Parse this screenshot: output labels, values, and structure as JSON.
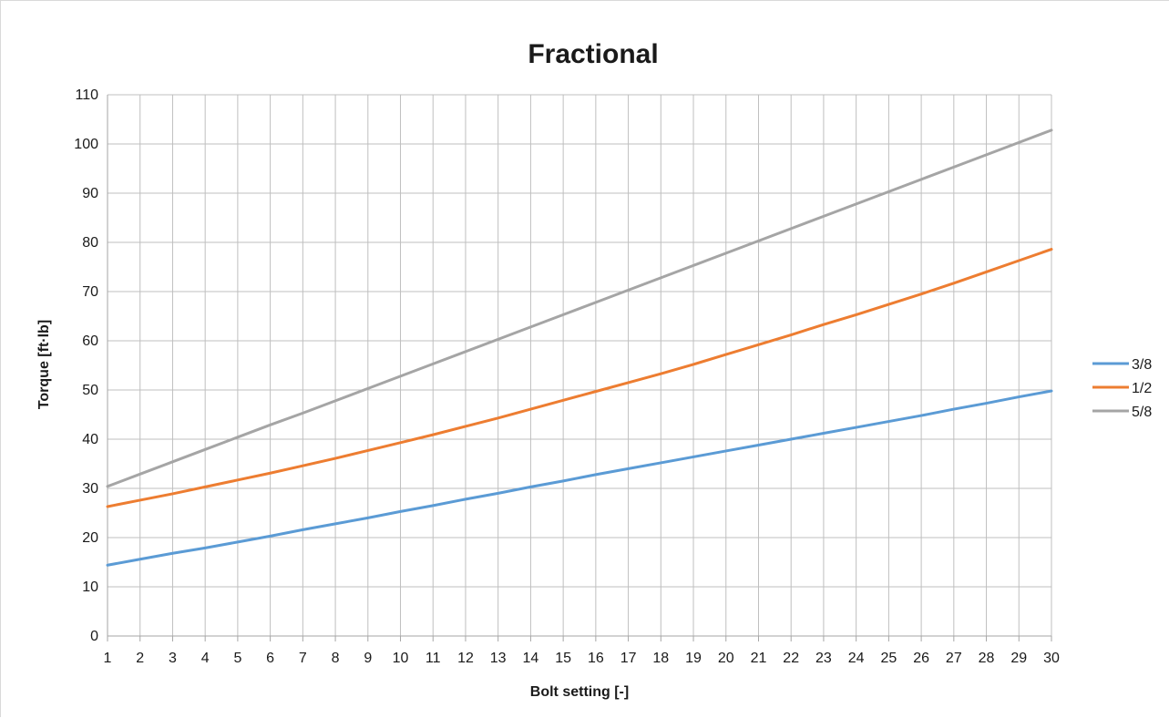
{
  "chart_data": {
    "type": "line",
    "title": "Fractional",
    "xlabel": "Bolt setting [-]",
    "ylabel": "Torque [ft·lb]",
    "x": [
      1,
      2,
      3,
      4,
      5,
      6,
      7,
      8,
      9,
      10,
      11,
      12,
      13,
      14,
      15,
      16,
      17,
      18,
      19,
      20,
      21,
      22,
      23,
      24,
      25,
      26,
      27,
      28,
      29,
      30
    ],
    "xlim": [
      1,
      30
    ],
    "ylim": [
      0,
      110
    ],
    "yticks": [
      0,
      10,
      20,
      30,
      40,
      50,
      60,
      70,
      80,
      90,
      100,
      110
    ],
    "xticks": [
      "1",
      "2",
      "3",
      "4",
      "5",
      "6",
      "7",
      "8",
      "9",
      "10",
      "11",
      "12",
      "13",
      "14",
      "15",
      "16",
      "17",
      "18",
      "19",
      "20",
      "21",
      "22",
      "23",
      "24",
      "25",
      "26",
      "27",
      "28",
      "29",
      "30"
    ],
    "grid": true,
    "legend": "right",
    "series": [
      {
        "name": "3/8",
        "color": "#5B9BD5",
        "values": [
          14.4,
          15.6,
          16.8,
          17.9,
          19.1,
          20.3,
          21.6,
          22.8,
          24.0,
          25.3,
          26.5,
          27.8,
          29.0,
          30.3,
          31.5,
          32.8,
          34.0,
          35.2,
          36.4,
          37.6,
          38.8,
          40.0,
          41.2,
          42.4,
          43.6,
          44.8,
          46.1,
          47.3,
          48.6,
          49.8
        ]
      },
      {
        "name": "1/2",
        "color": "#ED7D31",
        "values": [
          26.3,
          27.6,
          28.9,
          30.3,
          31.7,
          33.1,
          34.6,
          36.1,
          37.7,
          39.3,
          40.9,
          42.6,
          44.3,
          46.1,
          47.9,
          49.7,
          51.5,
          53.3,
          55.2,
          57.2,
          59.2,
          61.2,
          63.3,
          65.3,
          67.4,
          69.5,
          71.7,
          74.0,
          76.3,
          78.6
        ]
      },
      {
        "name": "5/8",
        "color": "#A5A5A5",
        "values": [
          30.4,
          32.9,
          35.4,
          37.9,
          40.4,
          42.9,
          45.3,
          47.8,
          50.3,
          52.8,
          55.3,
          57.8,
          60.3,
          62.8,
          65.3,
          67.8,
          70.3,
          72.8,
          75.3,
          77.8,
          80.3,
          82.8,
          85.3,
          87.8,
          90.3,
          92.8,
          95.3,
          97.8,
          100.3,
          102.8
        ]
      }
    ]
  }
}
